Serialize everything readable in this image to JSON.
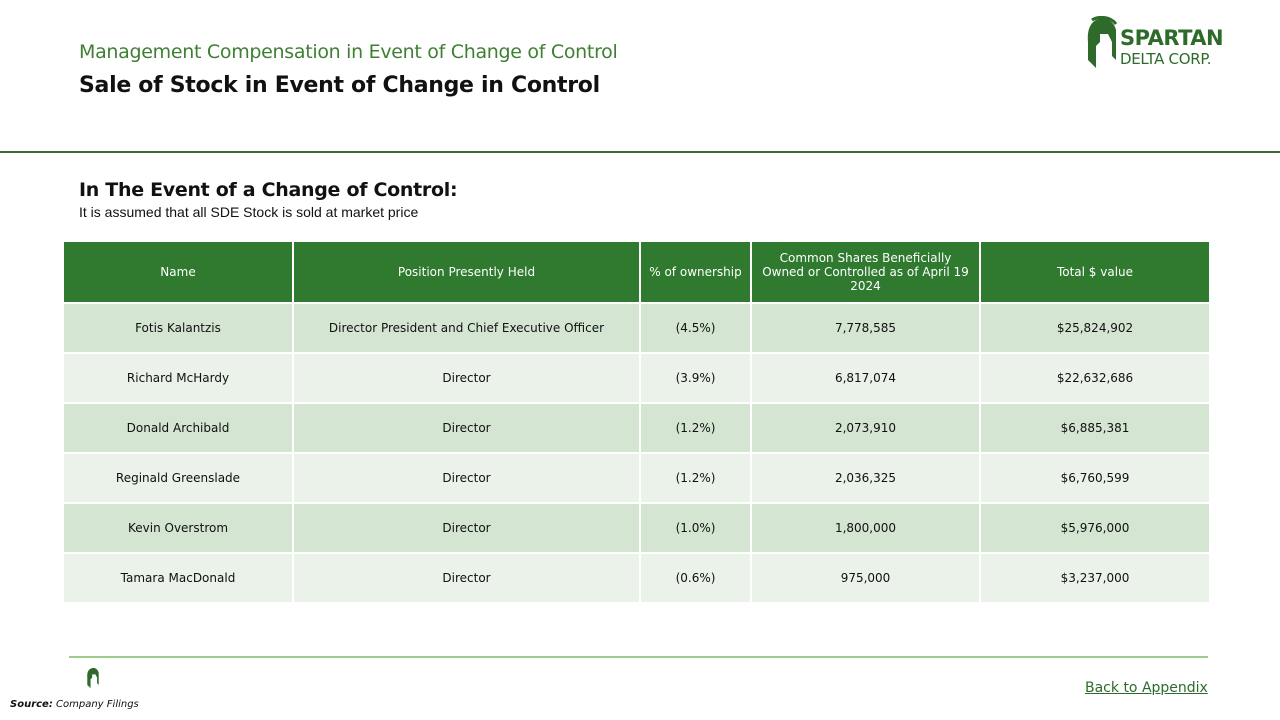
{
  "header": {
    "subtitle": "Management Compensation in Event of Change of Control",
    "title": "Sale of Stock in Event of Change in Control"
  },
  "logo": {
    "line1": "SPARTAN",
    "line2": "DELTA CORP."
  },
  "intro": {
    "heading": "In The Event of a Change of Control:",
    "text": "It is assumed that all SDE Stock is sold at market price"
  },
  "table": {
    "columns": [
      "Name",
      "Position Presently Held",
      "% of ownership",
      "Common Shares Beneficially Owned or Controlled as of April 19 2024",
      "Total $ value"
    ],
    "rows": [
      [
        "Fotis Kalantzis",
        "Director President and Chief Executive Officer",
        "(4.5%)",
        "7,778,585",
        "$25,824,902"
      ],
      [
        "Richard McHardy",
        "Director",
        "(3.9%)",
        "6,817,074",
        "$22,632,686"
      ],
      [
        "Donald Archibald",
        "Director",
        "(1.2%)",
        "2,073,910",
        "$6,885,381"
      ],
      [
        "Reginald Greenslade",
        "Director",
        "(1.2%)",
        "2,036,325",
        "$6,760,599"
      ],
      [
        "Kevin Overstrom",
        "Director",
        "(1.0%)",
        "1,800,000",
        "$5,976,000"
      ],
      [
        "Tamara MacDonald",
        "Director",
        "(0.6%)",
        "975,000",
        "$3,237,000"
      ]
    ]
  },
  "footer": {
    "source_label": "Source:",
    "source": "Company Filings",
    "link": "Back to Appendix"
  }
}
